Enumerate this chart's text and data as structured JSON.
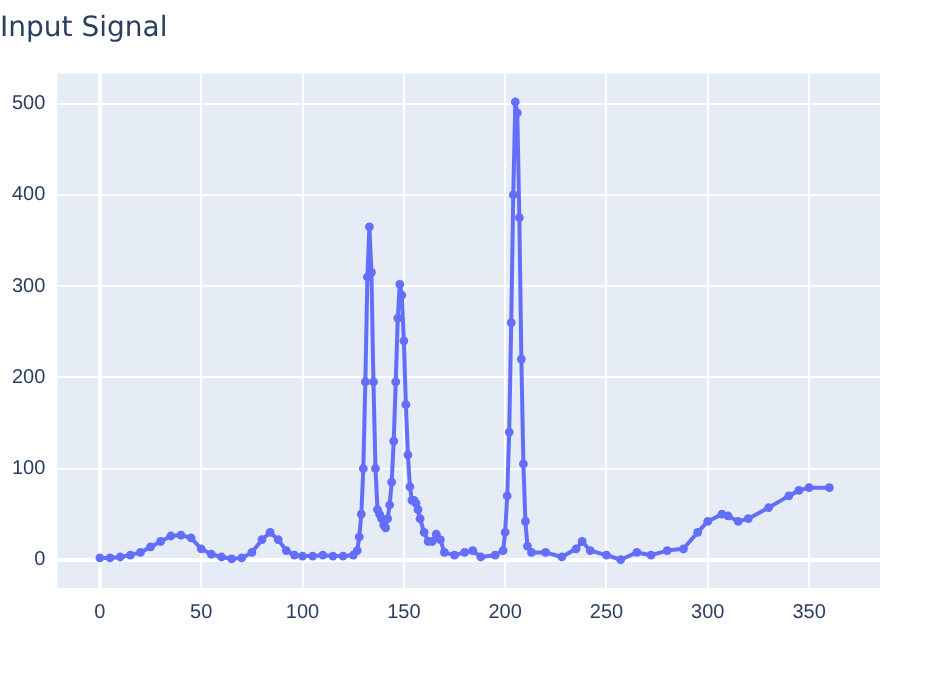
{
  "chart_data": {
    "type": "line",
    "title": "Input Signal",
    "x": [
      0,
      5,
      10,
      15,
      20,
      25,
      30,
      35,
      40,
      45,
      50,
      55,
      60,
      65,
      70,
      75,
      80,
      84,
      88,
      92,
      96,
      100,
      105,
      110,
      115,
      120,
      125,
      127,
      128,
      129,
      130,
      131,
      132,
      133,
      134,
      135,
      136,
      137,
      138,
      139,
      140,
      141,
      142,
      143,
      144,
      145,
      146,
      147,
      148,
      149,
      150,
      151,
      152,
      153,
      154,
      155,
      156,
      157,
      158,
      160,
      162,
      164,
      166,
      168,
      170,
      175,
      180,
      184,
      188,
      195,
      199,
      200,
      201,
      202,
      203,
      204,
      205,
      206,
      207,
      208,
      209,
      210,
      211,
      213,
      220,
      228,
      235,
      238,
      242,
      250,
      257,
      265,
      272,
      280,
      288,
      295,
      300,
      307,
      310,
      315,
      320,
      330,
      340,
      345,
      350,
      360
    ],
    "series": [
      {
        "color": "#636efa",
        "values": [
          2,
          2,
          3,
          5,
          8,
          14,
          20,
          26,
          27,
          24,
          12,
          6,
          3,
          1,
          2,
          8,
          22,
          30,
          22,
          10,
          5,
          4,
          4,
          5,
          4,
          4,
          5,
          10,
          25,
          50,
          100,
          195,
          310,
          365,
          315,
          195,
          100,
          55,
          50,
          45,
          38,
          35,
          45,
          60,
          85,
          130,
          195,
          265,
          302,
          290,
          240,
          170,
          115,
          80,
          65,
          65,
          62,
          55,
          45,
          30,
          20,
          20,
          28,
          22,
          8,
          5,
          8,
          10,
          3,
          5,
          10,
          30,
          70,
          140,
          260,
          400,
          502,
          490,
          375,
          220,
          105,
          42,
          15,
          8,
          8,
          3,
          12,
          20,
          10,
          5,
          0,
          8,
          5,
          10,
          12,
          30,
          42,
          50,
          48,
          42,
          45,
          57,
          70,
          76,
          79,
          79
        ]
      }
    ],
    "xlim": [
      -21,
      385
    ],
    "ylim": [
      -31,
      533
    ],
    "xticks": [
      0,
      50,
      100,
      150,
      200,
      250,
      300,
      350
    ],
    "yticks": [
      0,
      100,
      200,
      300,
      400,
      500
    ],
    "grid": true,
    "marker": "circle",
    "line_style": "solid"
  }
}
